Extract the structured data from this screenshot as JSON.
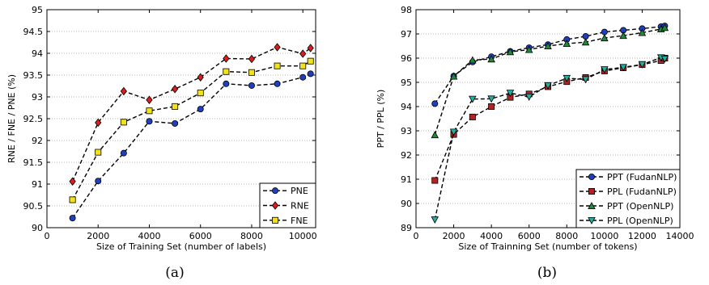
{
  "chart_data": [
    {
      "type": "line",
      "caption": "(a)",
      "xlabel": "Size of Training Set (number of labels)",
      "ylabel": "RNE / FNE / PNE (%)",
      "xlim": [
        0,
        10500
      ],
      "ylim": [
        90,
        95
      ],
      "xticks": [
        0,
        2000,
        4000,
        6000,
        8000,
        10000
      ],
      "yticks": [
        90,
        90.5,
        91,
        91.5,
        92,
        92.5,
        93,
        93.5,
        94,
        94.5,
        95
      ],
      "xtick_labels": [
        "0",
        "2000",
        "4000",
        "6000",
        "8000",
        "10000"
      ],
      "ytick_labels": [
        "90",
        "90.5",
        "91",
        "91.5",
        "92",
        "92.5",
        "93",
        "93.5",
        "94",
        "94.5",
        "95"
      ],
      "grid": "horizontal dotted",
      "legend_position": "bottom-right",
      "x": [
        1000,
        2000,
        3000,
        4000,
        5000,
        6000,
        7000,
        8000,
        9000,
        10000,
        10300
      ],
      "series": [
        {
          "name": "PNE",
          "marker": "circle",
          "color": "#1f3fbf",
          "values": [
            90.22,
            91.07,
            91.71,
            92.44,
            92.39,
            92.72,
            93.3,
            93.26,
            93.3,
            93.45,
            93.53
          ]
        },
        {
          "name": "RNE",
          "marker": "diamond",
          "color": "#d81e1e",
          "values": [
            91.06,
            92.41,
            93.13,
            92.93,
            93.18,
            93.45,
            93.88,
            93.87,
            94.14,
            93.99,
            94.12
          ]
        },
        {
          "name": "FNE",
          "marker": "square",
          "color": "#f2e21b",
          "values": [
            90.64,
            91.73,
            92.42,
            92.68,
            92.78,
            93.09,
            93.58,
            93.56,
            93.71,
            93.71,
            93.82
          ]
        }
      ]
    },
    {
      "type": "line",
      "caption": "(b)",
      "xlabel": "Size of Trainning Set (number of tokens)",
      "ylabel": "PPT / PPL (%)",
      "xlim": [
        0,
        14000
      ],
      "ylim": [
        89,
        98
      ],
      "xticks": [
        0,
        2000,
        4000,
        6000,
        8000,
        10000,
        12000,
        14000
      ],
      "yticks": [
        89,
        90,
        91,
        92,
        93,
        94,
        95,
        96,
        97,
        98
      ],
      "xtick_labels": [
        "0",
        "2000",
        "4000",
        "6000",
        "8000",
        "10000",
        "12000",
        "14000"
      ],
      "ytick_labels": [
        "89",
        "90",
        "91",
        "92",
        "93",
        "94",
        "95",
        "96",
        "97",
        "98"
      ],
      "grid": "horizontal dotted",
      "legend_position": "bottom-right",
      "x": [
        1000,
        2000,
        3000,
        4000,
        5000,
        6000,
        7000,
        8000,
        9000,
        10000,
        11000,
        12000,
        13000,
        13200
      ],
      "series": [
        {
          "name": "PPT (FudanNLP)",
          "marker": "circle",
          "color": "#1f3fbf",
          "values": [
            94.12,
            95.26,
            95.84,
            96.06,
            96.28,
            96.43,
            96.56,
            96.77,
            96.9,
            97.08,
            97.15,
            97.22,
            97.3,
            97.33
          ]
        },
        {
          "name": "PPL (FudanNLP)",
          "marker": "square",
          "color": "#b22222",
          "values": [
            90.95,
            92.85,
            93.57,
            94.0,
            94.38,
            94.52,
            94.82,
            95.03,
            95.2,
            95.47,
            95.6,
            95.73,
            95.9,
            96.0
          ]
        },
        {
          "name": "PPT (OpenNLP)",
          "marker": "triangle-up",
          "color": "#1f8a3a",
          "values": [
            92.83,
            95.25,
            95.92,
            95.96,
            96.26,
            96.35,
            96.5,
            96.6,
            96.66,
            96.83,
            96.93,
            97.05,
            97.2,
            97.26
          ]
        },
        {
          "name": "PPL (OpenNLP)",
          "marker": "triangle-down",
          "color": "#20b0a0",
          "values": [
            89.33,
            92.95,
            94.31,
            94.32,
            94.56,
            94.4,
            94.87,
            95.17,
            95.12,
            95.53,
            95.62,
            95.74,
            96.02,
            95.97
          ]
        }
      ]
    }
  ]
}
